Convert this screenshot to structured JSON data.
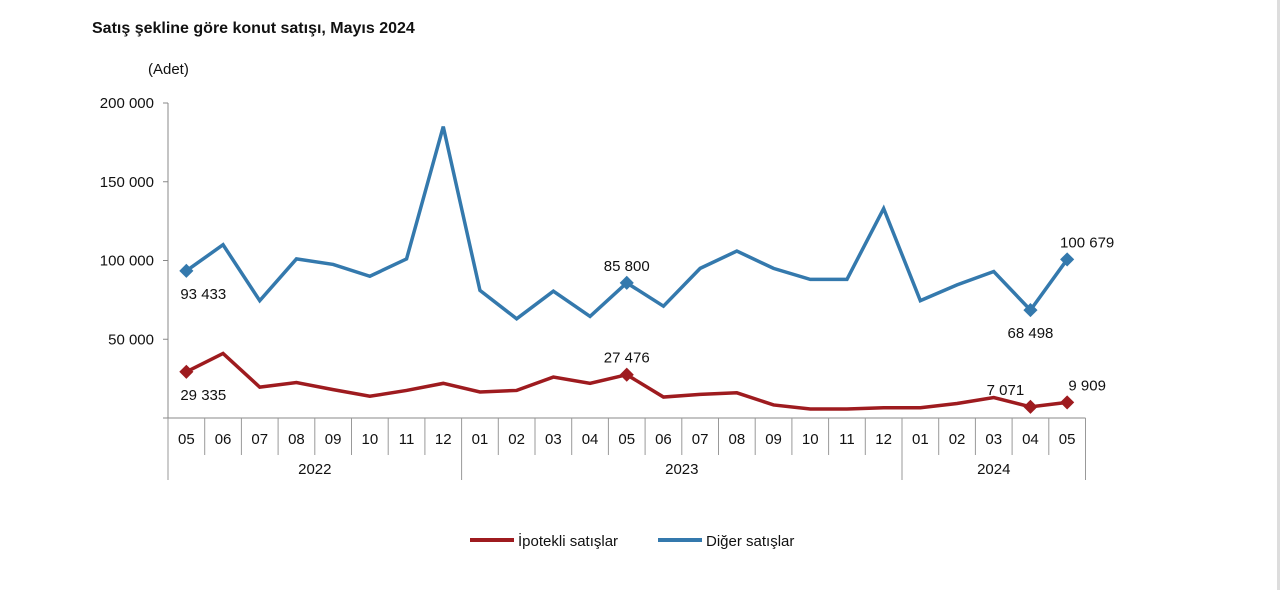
{
  "chart_data": {
    "type": "line",
    "title": "Satış şekline göre konut satışı, Mayıs 2024",
    "ylabel": "(Adet)",
    "xlabel": "",
    "ylim": [
      0,
      200000
    ],
    "yticks": [
      0,
      50000,
      100000,
      150000,
      200000
    ],
    "ytick_labels": [
      "",
      "50 000",
      "100 000",
      "150 000",
      "200 000"
    ],
    "grid": false,
    "legend": "bottom",
    "categories": [
      "05",
      "06",
      "07",
      "08",
      "09",
      "10",
      "11",
      "12",
      "01",
      "02",
      "03",
      "04",
      "05",
      "06",
      "07",
      "08",
      "09",
      "10",
      "11",
      "12",
      "01",
      "02",
      "03",
      "04",
      "05"
    ],
    "year_groups": [
      {
        "label": "2022",
        "count": 8
      },
      {
        "label": "2023",
        "count": 12
      },
      {
        "label": "2024",
        "count": 5
      }
    ],
    "series": [
      {
        "name": "İpotekli satışlar",
        "color": "#9e1b1f",
        "values": [
          29335,
          41000,
          19600,
          22500,
          18000,
          13800,
          17500,
          22000,
          16500,
          17500,
          26000,
          22000,
          27476,
          13300,
          15000,
          16000,
          8300,
          5700,
          5700,
          6500,
          6500,
          9200,
          13000,
          7071,
          9909
        ],
        "labels": {
          "0": "29 335",
          "12": "27 476",
          "23": "7 071",
          "24": "9 909"
        }
      },
      {
        "name": "Diğer satışlar",
        "color": "#3479ad",
        "values": [
          93433,
          110000,
          74500,
          101000,
          97500,
          90000,
          101000,
          185000,
          81000,
          63000,
          80500,
          64500,
          85800,
          71000,
          95000,
          106000,
          95000,
          88000,
          88000,
          133000,
          74500,
          84500,
          93000,
          68498,
          100679
        ],
        "labels": {
          "0": "93 433",
          "12": "85 800",
          "23": "68 498",
          "24": "100 679"
        }
      }
    ]
  }
}
